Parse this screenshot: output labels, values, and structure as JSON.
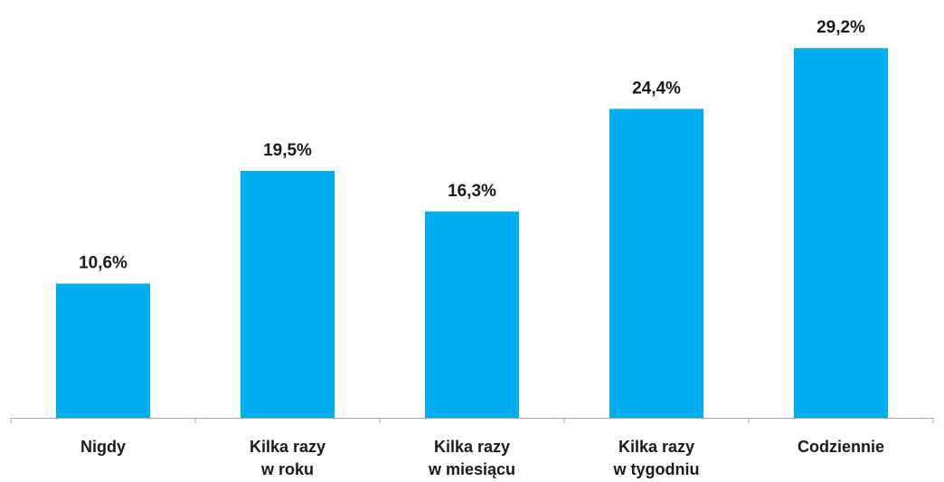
{
  "chart_data": {
    "type": "bar",
    "categories": [
      [
        "Nigdy"
      ],
      [
        "Kilka razy",
        "w roku"
      ],
      [
        "Kilka razy",
        "w miesiącu"
      ],
      [
        "Kilka razy",
        "w tygodniu"
      ],
      [
        "Codziennie"
      ]
    ],
    "values": [
      10.6,
      19.5,
      16.3,
      24.4,
      29.2
    ],
    "value_labels": [
      "10,6%",
      "19,5%",
      "16,3%",
      "24,4%",
      "29,2%"
    ],
    "title": "",
    "xlabel": "",
    "ylabel": "",
    "ylim": [
      0,
      30
    ],
    "grid": false,
    "legend": "none",
    "bar_color": "#00AEEF",
    "axis_color": "#A6A6A6",
    "text_color": "#1A1A1A"
  }
}
